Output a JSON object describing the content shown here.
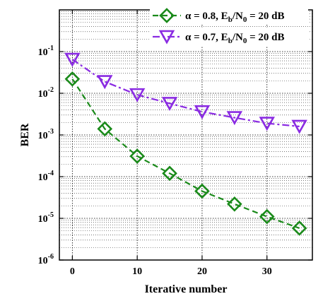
{
  "chart_data": {
    "type": "line",
    "xlabel": "Iterative number",
    "ylabel": "BER",
    "xlim": [
      -2,
      37
    ],
    "ylim": [
      1e-06,
      1
    ],
    "yscale": "log",
    "grid": true,
    "legend_position": "top-right",
    "x_ticks": [
      0,
      10,
      20,
      30
    ],
    "x_tick_labels": [
      "0",
      "10",
      "20",
      "30"
    ],
    "y_ticks": [
      {
        "value": 1e-06,
        "base": "10",
        "exp": "-6"
      },
      {
        "value": 1e-05,
        "base": "10",
        "exp": "-5"
      },
      {
        "value": 0.0001,
        "base": "10",
        "exp": "-4"
      },
      {
        "value": 0.001,
        "base": "10",
        "exp": "-3"
      },
      {
        "value": 0.01,
        "base": "10",
        "exp": "-2"
      },
      {
        "value": 0.1,
        "base": "10",
        "exp": "-1"
      }
    ],
    "series": [
      {
        "name": "α = 0.8, Eb/N0 = 20 dB",
        "legend_parts": {
          "lhs": "α = 0.8, E",
          "sub1": "b",
          "mid": "/N",
          "sub2": "0",
          "rhs": " = 20 dB"
        },
        "marker": "diamond",
        "color": "#1a8a1a",
        "line_style": "dashed",
        "x": [
          0,
          5,
          10,
          15,
          20,
          25,
          30,
          35
        ],
        "y": [
          0.022,
          0.0014,
          0.00031,
          0.00012,
          4.5e-05,
          2.2e-05,
          1.1e-05,
          5.8e-06
        ]
      },
      {
        "name": "α = 0.7, Eb/N0 = 20 dB",
        "legend_parts": {
          "lhs": "α = 0.7, E",
          "sub1": "b",
          "mid": "/N",
          "sub2": "0",
          "rhs": " = 20 dB"
        },
        "marker": "triangle-down",
        "color": "#8a2be2",
        "line_style": "dash-dot",
        "x": [
          0,
          5,
          10,
          15,
          20,
          25,
          30,
          35
        ],
        "y": [
          0.065,
          0.019,
          0.0092,
          0.0057,
          0.0036,
          0.0026,
          0.0019,
          0.0016
        ]
      }
    ]
  }
}
